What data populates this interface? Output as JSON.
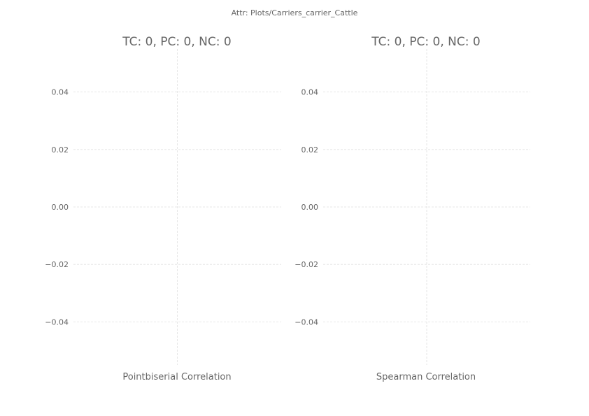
{
  "suptitle": "Attr: Plots/Carriers_carrier_Cattle",
  "colors": {
    "text": "#666666",
    "grid": "#e0e0e0",
    "background": "#ffffff"
  },
  "chart_data": [
    {
      "type": "scatter",
      "title": "TC: 0, PC: 0, NC: 0",
      "xlabel": "Pointbiserial Correlation",
      "ylabel": "",
      "ylim": [
        -0.055,
        0.055
      ],
      "yticks": [
        0.04,
        0.02,
        0.0,
        -0.02,
        -0.04
      ],
      "ytick_labels": [
        "0.04",
        "0.02",
        "0.00",
        "−0.02",
        "−0.04"
      ],
      "grid": true,
      "series": []
    },
    {
      "type": "scatter",
      "title": "TC: 0, PC: 0, NC: 0",
      "xlabel": "Spearman Correlation",
      "ylabel": "",
      "ylim": [
        -0.055,
        0.055
      ],
      "yticks": [
        0.04,
        0.02,
        0.0,
        -0.02,
        -0.04
      ],
      "ytick_labels": [
        "0.04",
        "0.02",
        "0.00",
        "−0.02",
        "−0.04"
      ],
      "grid": true,
      "series": []
    }
  ]
}
